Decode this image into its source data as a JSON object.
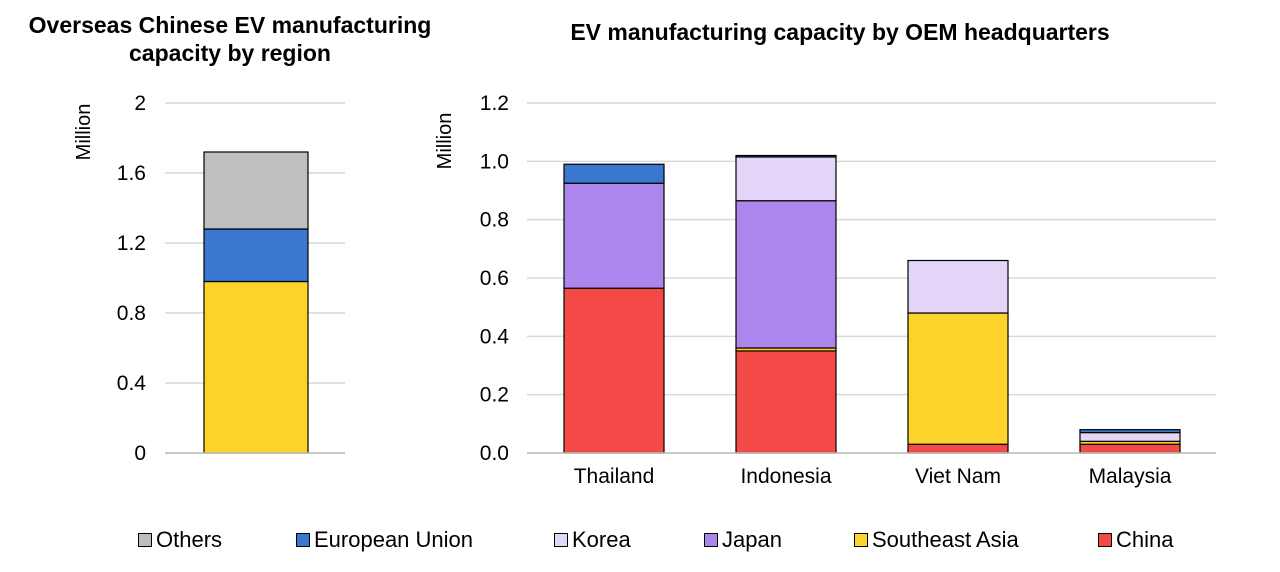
{
  "chart_data": [
    {
      "type": "bar",
      "stacked": true,
      "title": "Overseas Chinese EV manufacturing capacity by region",
      "ylabel": "Million",
      "ylim": [
        0,
        2
      ],
      "yticks": [
        "0",
        "0.4",
        "0.8",
        "1.2",
        "1.6",
        "2"
      ],
      "ytick_values": [
        0,
        0.4,
        0.8,
        1.2,
        1.6,
        2
      ],
      "grid": true,
      "categories": [
        ""
      ],
      "series": [
        {
          "name": "Southeast Asia",
          "values": [
            0.98
          ]
        },
        {
          "name": "European Union",
          "values": [
            0.3
          ]
        },
        {
          "name": "Others",
          "values": [
            0.44
          ]
        }
      ]
    },
    {
      "type": "bar",
      "stacked": true,
      "title": "EV manufacturing capacity by OEM headquarters",
      "ylabel": "Million",
      "ylim": [
        0,
        1.2
      ],
      "yticks": [
        "0.0",
        "0.2",
        "0.4",
        "0.6",
        "0.8",
        "1.0",
        "1.2"
      ],
      "ytick_values": [
        0,
        0.2,
        0.4,
        0.6,
        0.8,
        1.0,
        1.2
      ],
      "grid": true,
      "categories": [
        "Thailand",
        "Indonesia",
        "Viet Nam",
        "Malaysia"
      ],
      "series": [
        {
          "name": "China",
          "values": [
            0.565,
            0.35,
            0.03,
            0.03
          ]
        },
        {
          "name": "Southeast Asia",
          "values": [
            0,
            0.01,
            0.45,
            0.01
          ]
        },
        {
          "name": "Japan",
          "values": [
            0.36,
            0.505,
            0,
            0
          ]
        },
        {
          "name": "Korea",
          "values": [
            0,
            0.15,
            0.18,
            0.03
          ]
        },
        {
          "name": "European Union",
          "values": [
            0.065,
            0.005,
            0,
            0.01
          ]
        }
      ]
    }
  ],
  "legend": {
    "position": "bottom",
    "items": [
      {
        "name": "Others",
        "color": "#bfbfbf"
      },
      {
        "name": "European Union",
        "color": "#3a78d0"
      },
      {
        "name": "Korea",
        "color": "#e3d6f8"
      },
      {
        "name": "Japan",
        "color": "#ad86ed"
      },
      {
        "name": "Southeast Asia",
        "color": "#fcd32a"
      },
      {
        "name": "China",
        "color": "#f44a47"
      }
    ]
  },
  "colors": {
    "Others": "#bfbfbf",
    "European Union": "#3a78d0",
    "Korea": "#e3d6f8",
    "Japan": "#ad86ed",
    "Southeast Asia": "#fcd32a",
    "China": "#f44a47",
    "grid": "#d9d9d9"
  }
}
